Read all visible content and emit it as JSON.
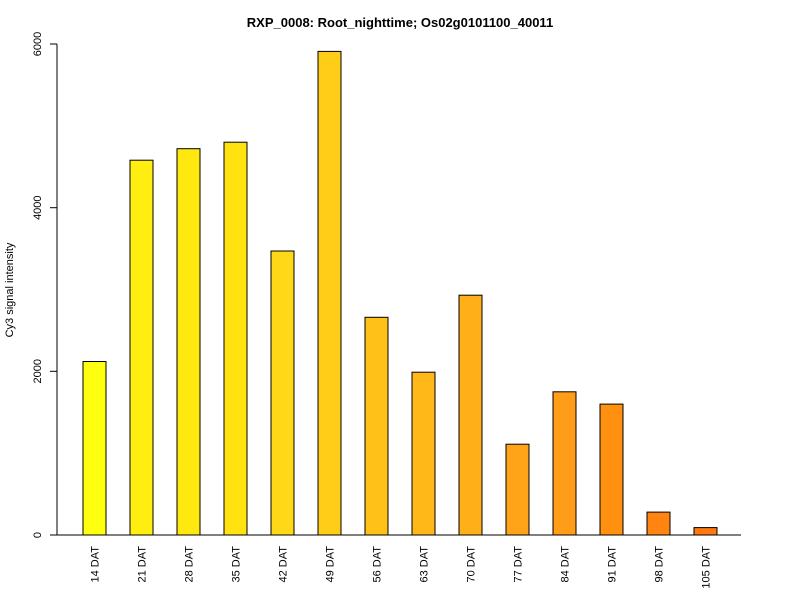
{
  "chart_data": {
    "type": "bar",
    "title": "RXP_0008: Root_nighttime; Os02g0101100_40011",
    "xlabel": "",
    "ylabel": "Cy3 signal intensity",
    "categories": [
      "14 DAT",
      "21 DAT",
      "28 DAT",
      "35 DAT",
      "42 DAT",
      "49 DAT",
      "56 DAT",
      "63 DAT",
      "70 DAT",
      "77 DAT",
      "84 DAT",
      "91 DAT",
      "98 DAT",
      "105 DAT"
    ],
    "values": [
      2120,
      4580,
      4720,
      4800,
      3470,
      5910,
      2660,
      1990,
      2930,
      1110,
      1750,
      1600,
      280,
      90
    ],
    "colors": [
      "#FFFF10",
      "#FFEE10",
      "#FFE810",
      "#FFE210",
      "#FFD818",
      "#FFCC18",
      "#FFC018",
      "#FFB818",
      "#FFB018",
      "#FFA418",
      "#FF9C18",
      "#FF9010",
      "#FF8410",
      "#FF7810"
    ],
    "yticks": [
      0,
      2000,
      4000,
      6000
    ],
    "ylim": [
      0,
      6000
    ],
    "grid": false
  }
}
